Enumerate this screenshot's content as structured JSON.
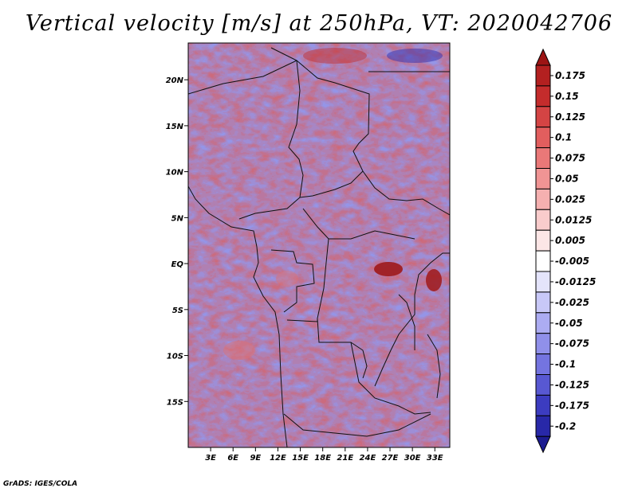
{
  "title": "Vertical velocity [m/s] at 250hPa, VT: 2020042706",
  "credit": "GrADS: IGES/COLA",
  "map": {
    "lon_range": [
      0,
      35
    ],
    "lat_range": [
      -20,
      24
    ],
    "lon_ticks": [
      {
        "value": 3,
        "label": "3E"
      },
      {
        "value": 6,
        "label": "6E"
      },
      {
        "value": 9,
        "label": "9E"
      },
      {
        "value": 12,
        "label": "12E"
      },
      {
        "value": 15,
        "label": "15E"
      },
      {
        "value": 18,
        "label": "18E"
      },
      {
        "value": 21,
        "label": "21E"
      },
      {
        "value": 24,
        "label": "24E"
      },
      {
        "value": 27,
        "label": "27E"
      },
      {
        "value": 30,
        "label": "30E"
      },
      {
        "value": 33,
        "label": "33E"
      }
    ],
    "lat_ticks": [
      {
        "value": 20,
        "label": "20N"
      },
      {
        "value": 15,
        "label": "15N"
      },
      {
        "value": 10,
        "label": "10N"
      },
      {
        "value": 5,
        "label": "5N"
      },
      {
        "value": 0,
        "label": "EQ"
      },
      {
        "value": -5,
        "label": "5S"
      },
      {
        "value": -10,
        "label": "10S"
      },
      {
        "value": -15,
        "label": "15S"
      }
    ]
  },
  "colorbar": {
    "levels": [
      {
        "label": "0.175",
        "color": "#b32020"
      },
      {
        "label": "0.15",
        "color": "#c42c2c"
      },
      {
        "label": "0.125",
        "color": "#d44444"
      },
      {
        "label": "0.1",
        "color": "#e25e5e"
      },
      {
        "label": "0.075",
        "color": "#ea7878"
      },
      {
        "label": "0.05",
        "color": "#f09494"
      },
      {
        "label": "0.025",
        "color": "#f5b0b0"
      },
      {
        "label": "0.0125",
        "color": "#f9cccc"
      },
      {
        "label": "0.005",
        "color": "#fce6e6"
      },
      {
        "label": "-0.005",
        "color": "#ffffff"
      },
      {
        "label": "-0.0125",
        "color": "#e4e4fb"
      },
      {
        "label": "-0.025",
        "color": "#c8c8f7"
      },
      {
        "label": "-0.05",
        "color": "#acacf2"
      },
      {
        "label": "-0.075",
        "color": "#9090ea"
      },
      {
        "label": "-0.1",
        "color": "#7474e0"
      },
      {
        "label": "-0.125",
        "color": "#5858d2"
      },
      {
        "label": "-0.175",
        "color": "#3c3cc0"
      },
      {
        "label": "-0.2",
        "color": "#2828a8"
      }
    ],
    "top_cap_color": "#9c1414",
    "bottom_cap_color": "#1c1c90"
  }
}
